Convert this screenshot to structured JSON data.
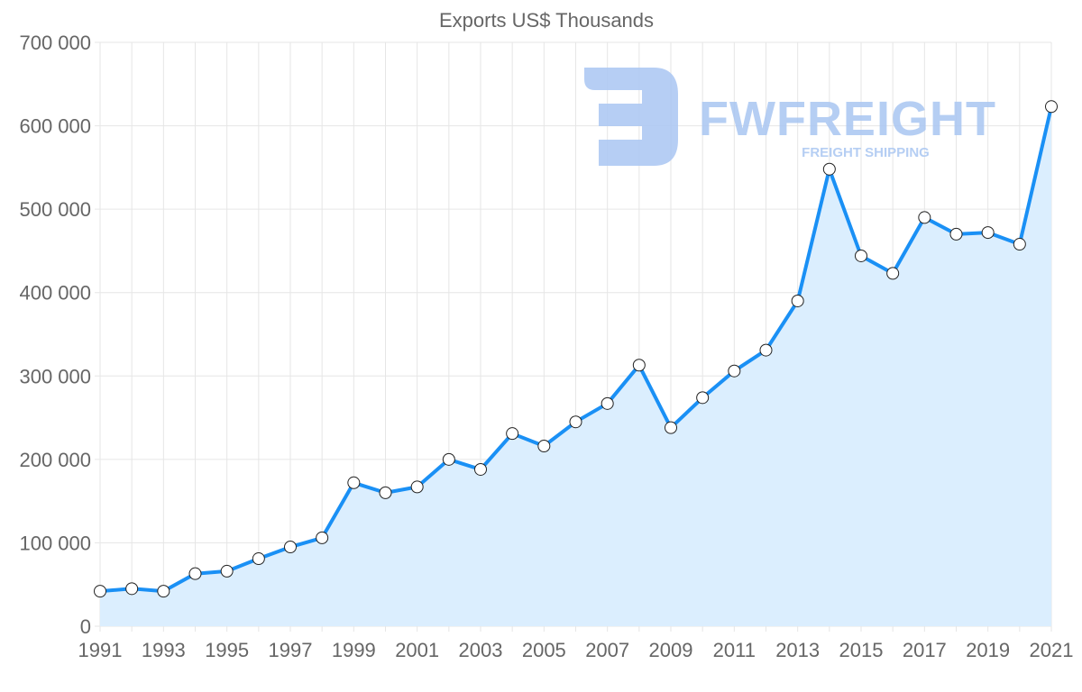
{
  "chart_data": {
    "type": "line",
    "title": "Exports US$ Thousands",
    "xlabel": "",
    "ylabel": "",
    "x": [
      1991,
      1992,
      1993,
      1994,
      1995,
      1996,
      1997,
      1998,
      1999,
      2000,
      2001,
      2002,
      2003,
      2004,
      2005,
      2006,
      2007,
      2008,
      2009,
      2010,
      2011,
      2012,
      2013,
      2014,
      2015,
      2016,
      2017,
      2018,
      2019,
      2020,
      2021
    ],
    "series": [
      {
        "name": "Exports US$ Thousands",
        "values": [
          42000,
          45000,
          42000,
          63000,
          66000,
          81000,
          95000,
          106000,
          172000,
          160000,
          167000,
          200000,
          188000,
          231000,
          216000,
          245000,
          267000,
          313000,
          238000,
          274000,
          306000,
          331000,
          390000,
          548000,
          444000,
          423000,
          490000,
          470000,
          472000,
          458000,
          623000
        ]
      }
    ],
    "ylim": [
      0,
      700000
    ],
    "yticks": [
      "0",
      "100 000",
      "200 000",
      "300 000",
      "400 000",
      "500 000",
      "600 000",
      "700 000"
    ],
    "xticks": [
      "1991",
      "1993",
      "1995",
      "1997",
      "1999",
      "2001",
      "2003",
      "2005",
      "2007",
      "2009",
      "2011",
      "2013",
      "2015",
      "2017",
      "2019",
      "2021"
    ],
    "grid": true,
    "legend": "none",
    "colors": {
      "line": "#1a90f5",
      "fill": "#dbeefe",
      "grid": "#e6e6e6",
      "text": "#666666",
      "watermark": "#a9c6f2"
    }
  },
  "watermark": {
    "brand": "FWFREIGHT",
    "tagline": "FREIGHT SHIPPING"
  }
}
